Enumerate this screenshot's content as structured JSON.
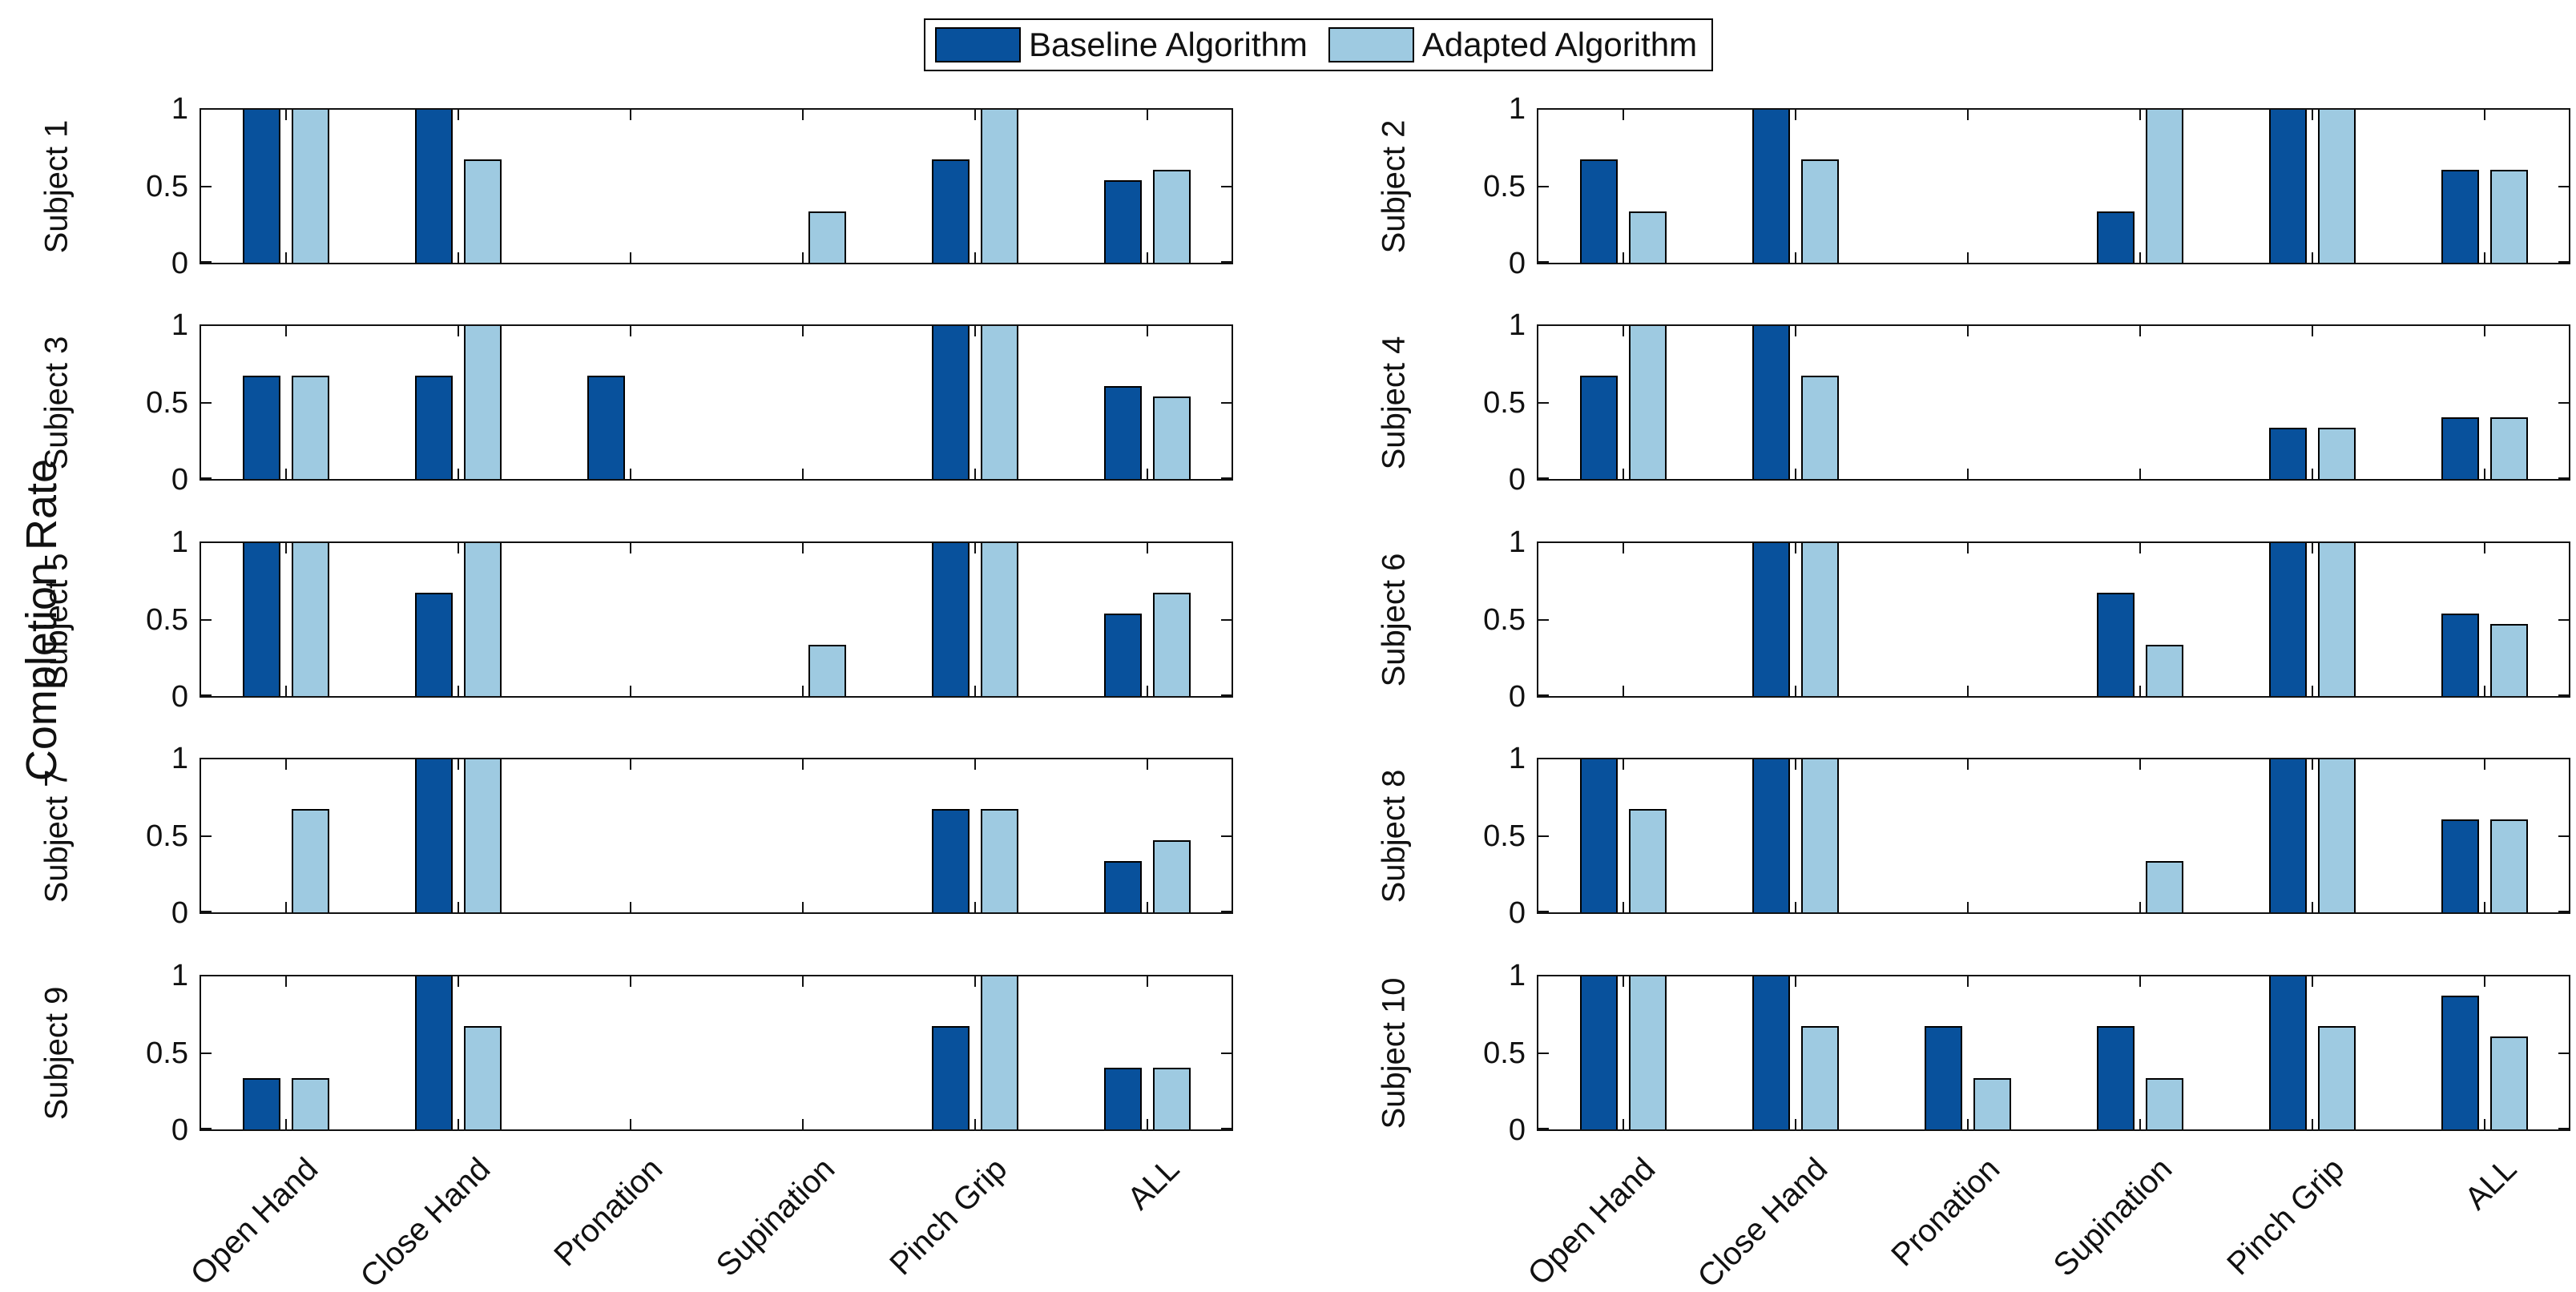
{
  "figure": {
    "ylabel": "Completion Rate"
  },
  "legend": {
    "items": [
      {
        "label": "Baseline Algorithm",
        "color": "#08519C"
      },
      {
        "label": "Adapted Algorithm",
        "color": "#9ECAE1"
      }
    ]
  },
  "chart_data": {
    "type": "bar",
    "title": "",
    "xlabel": "",
    "ylabel": "Completion Rate",
    "categories": [
      "Open Hand",
      "Close Hand",
      "Pronation",
      "Supination",
      "Pinch Grip",
      "ALL"
    ],
    "ylim": [
      0,
      1
    ],
    "yticks": [
      0,
      0.5,
      1
    ],
    "ytick_labels": [
      "0",
      "0.5",
      "1"
    ],
    "grid": false,
    "legend_position": "top-center",
    "series_names": [
      "Baseline Algorithm",
      "Adapted Algorithm"
    ],
    "colors": {
      "baseline": "#08519C",
      "adapted": "#9ECAE1",
      "edge": "#000000"
    },
    "subplots": [
      {
        "label": "Subject 1",
        "baseline": [
          1,
          1,
          0,
          0,
          0.667,
          0.533
        ],
        "adapted": [
          1,
          0.667,
          0,
          0.333,
          1,
          0.6
        ]
      },
      {
        "label": "Subject 2",
        "baseline": [
          0.667,
          1,
          0,
          0.333,
          1,
          0.6
        ],
        "adapted": [
          0.333,
          0.667,
          0,
          1,
          1,
          0.6
        ]
      },
      {
        "label": "Subject 3",
        "baseline": [
          0.667,
          0.667,
          0.667,
          0,
          1,
          0.6
        ],
        "adapted": [
          0.667,
          1,
          0,
          0,
          1,
          0.533
        ]
      },
      {
        "label": "Subject 4",
        "baseline": [
          0.667,
          1,
          0,
          0,
          0.333,
          0.4
        ],
        "adapted": [
          1,
          0.667,
          0,
          0,
          0.333,
          0.4
        ]
      },
      {
        "label": "Subject 5",
        "baseline": [
          1,
          0.667,
          0,
          0,
          1,
          0.533
        ],
        "adapted": [
          1,
          1,
          0,
          0.333,
          1,
          0.667
        ]
      },
      {
        "label": "Subject 6",
        "baseline": [
          0,
          1,
          0,
          0.667,
          1,
          0.533
        ],
        "adapted": [
          0,
          1,
          0,
          0.333,
          1,
          0.467
        ]
      },
      {
        "label": "Subject 7",
        "baseline": [
          0,
          1,
          0,
          0,
          0.667,
          0.333
        ],
        "adapted": [
          0.667,
          1,
          0,
          0,
          0.667,
          0.467
        ]
      },
      {
        "label": "Subject 8",
        "baseline": [
          1,
          1,
          0,
          0,
          1,
          0.6
        ],
        "adapted": [
          0.667,
          1,
          0,
          0.333,
          1,
          0.6
        ]
      },
      {
        "label": "Subject 9",
        "baseline": [
          0.333,
          1,
          0,
          0,
          0.667,
          0.4
        ],
        "adapted": [
          0.333,
          0.667,
          0,
          0,
          1,
          0.4
        ]
      },
      {
        "label": "Subject 10",
        "baseline": [
          1,
          1,
          0.667,
          0.667,
          1,
          0.867
        ],
        "adapted": [
          1,
          0.667,
          0.333,
          0.333,
          0.667,
          0.6
        ]
      }
    ]
  }
}
